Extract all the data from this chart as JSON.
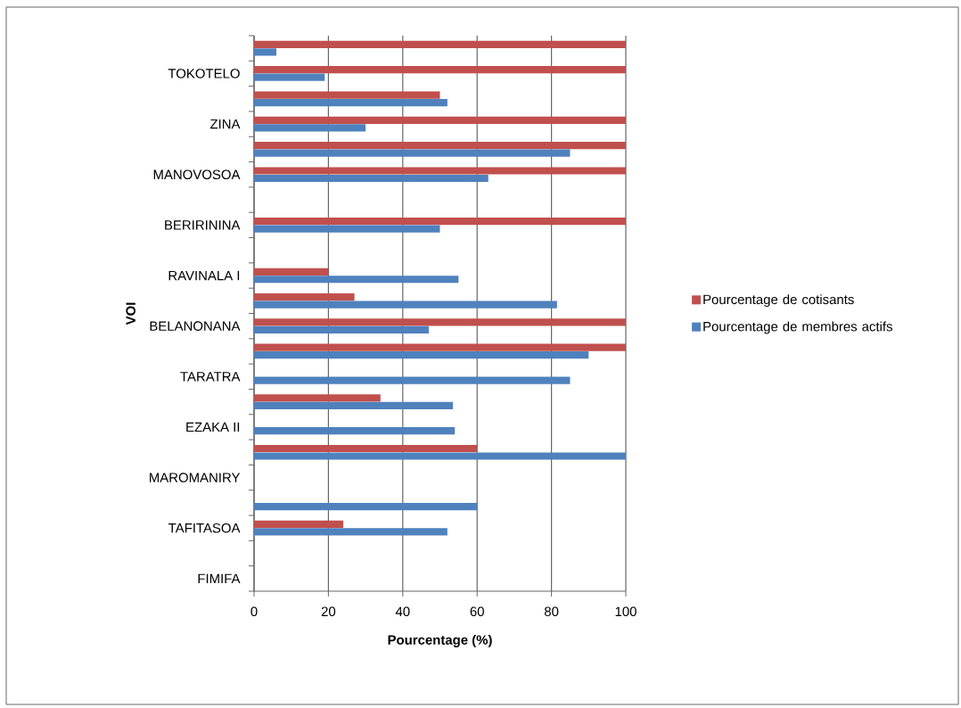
{
  "chart_data": {
    "type": "bar",
    "orientation": "horizontal",
    "xlabel": "Pourcentage (%)",
    "ylabel": "VOI",
    "categories": [
      null,
      "TOKOTELO",
      null,
      "ZINA",
      null,
      "MANOVOSOA",
      null,
      "BERIRININA",
      null,
      "RAVINALA I",
      null,
      "BELANONANA",
      null,
      "TARATRA",
      null,
      "EZAKA II",
      null,
      "MAROMANIRY",
      null,
      "TAFITASOA",
      null,
      "FIMIFA"
    ],
    "series": [
      {
        "name": "Pourcentage de cotisants",
        "color": "#c0504d",
        "values": [
          100,
          100,
          50,
          100,
          100,
          100,
          null,
          100,
          null,
          20,
          27,
          100,
          100,
          null,
          34,
          null,
          60,
          null,
          null,
          24,
          null,
          null
        ]
      },
      {
        "name": "Pourcentage de membres actifs",
        "color": "#4f81bd",
        "values": [
          6,
          19,
          52,
          30,
          85,
          63,
          null,
          50,
          null,
          55,
          81.5,
          47,
          90,
          85,
          53.5,
          54,
          100,
          null,
          60,
          52,
          null,
          null
        ]
      }
    ],
    "xlim": [
      0,
      100
    ],
    "xticks": [
      0,
      20,
      40,
      60,
      80,
      100
    ],
    "grid": "x",
    "legend": "right"
  }
}
